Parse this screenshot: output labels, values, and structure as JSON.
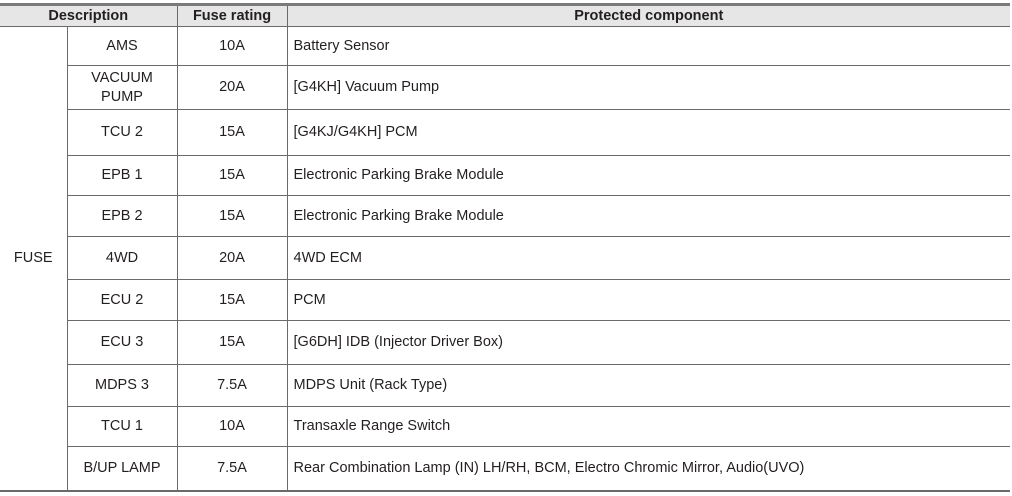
{
  "headers": {
    "description": "Description",
    "fuse_rating": "Fuse rating",
    "protected_component": "Protected component"
  },
  "group_label": "FUSE",
  "rows": [
    {
      "name": "AMS",
      "rating": "10A",
      "component": "Battery Sensor"
    },
    {
      "name": "VACUUM PUMP",
      "rating": "20A",
      "component": "[G4KH] Vacuum Pump"
    },
    {
      "name": "TCU 2",
      "rating": "15A",
      "component": "[G4KJ/G4KH] PCM"
    },
    {
      "name": "EPB 1",
      "rating": "15A",
      "component": "Electronic Parking Brake Module"
    },
    {
      "name": "EPB 2",
      "rating": "15A",
      "component": "Electronic Parking Brake Module"
    },
    {
      "name": "4WD",
      "rating": "20A",
      "component": "4WD ECM"
    },
    {
      "name": "ECU 2",
      "rating": "15A",
      "component": "PCM"
    },
    {
      "name": "ECU 3",
      "rating": "15A",
      "component": "[G6DH] IDB (Injector Driver Box)"
    },
    {
      "name": "MDPS 3",
      "rating": "7.5A",
      "component": "MDPS Unit (Rack Type)"
    },
    {
      "name": "TCU 1",
      "rating": "10A",
      "component": "Transaxle Range Switch"
    },
    {
      "name": "B/UP LAMP",
      "rating": "7.5A",
      "component": "Rear Combination Lamp (IN) LH/RH, BCM, Electro Chromic Mirror, Audio(UVO)"
    }
  ]
}
